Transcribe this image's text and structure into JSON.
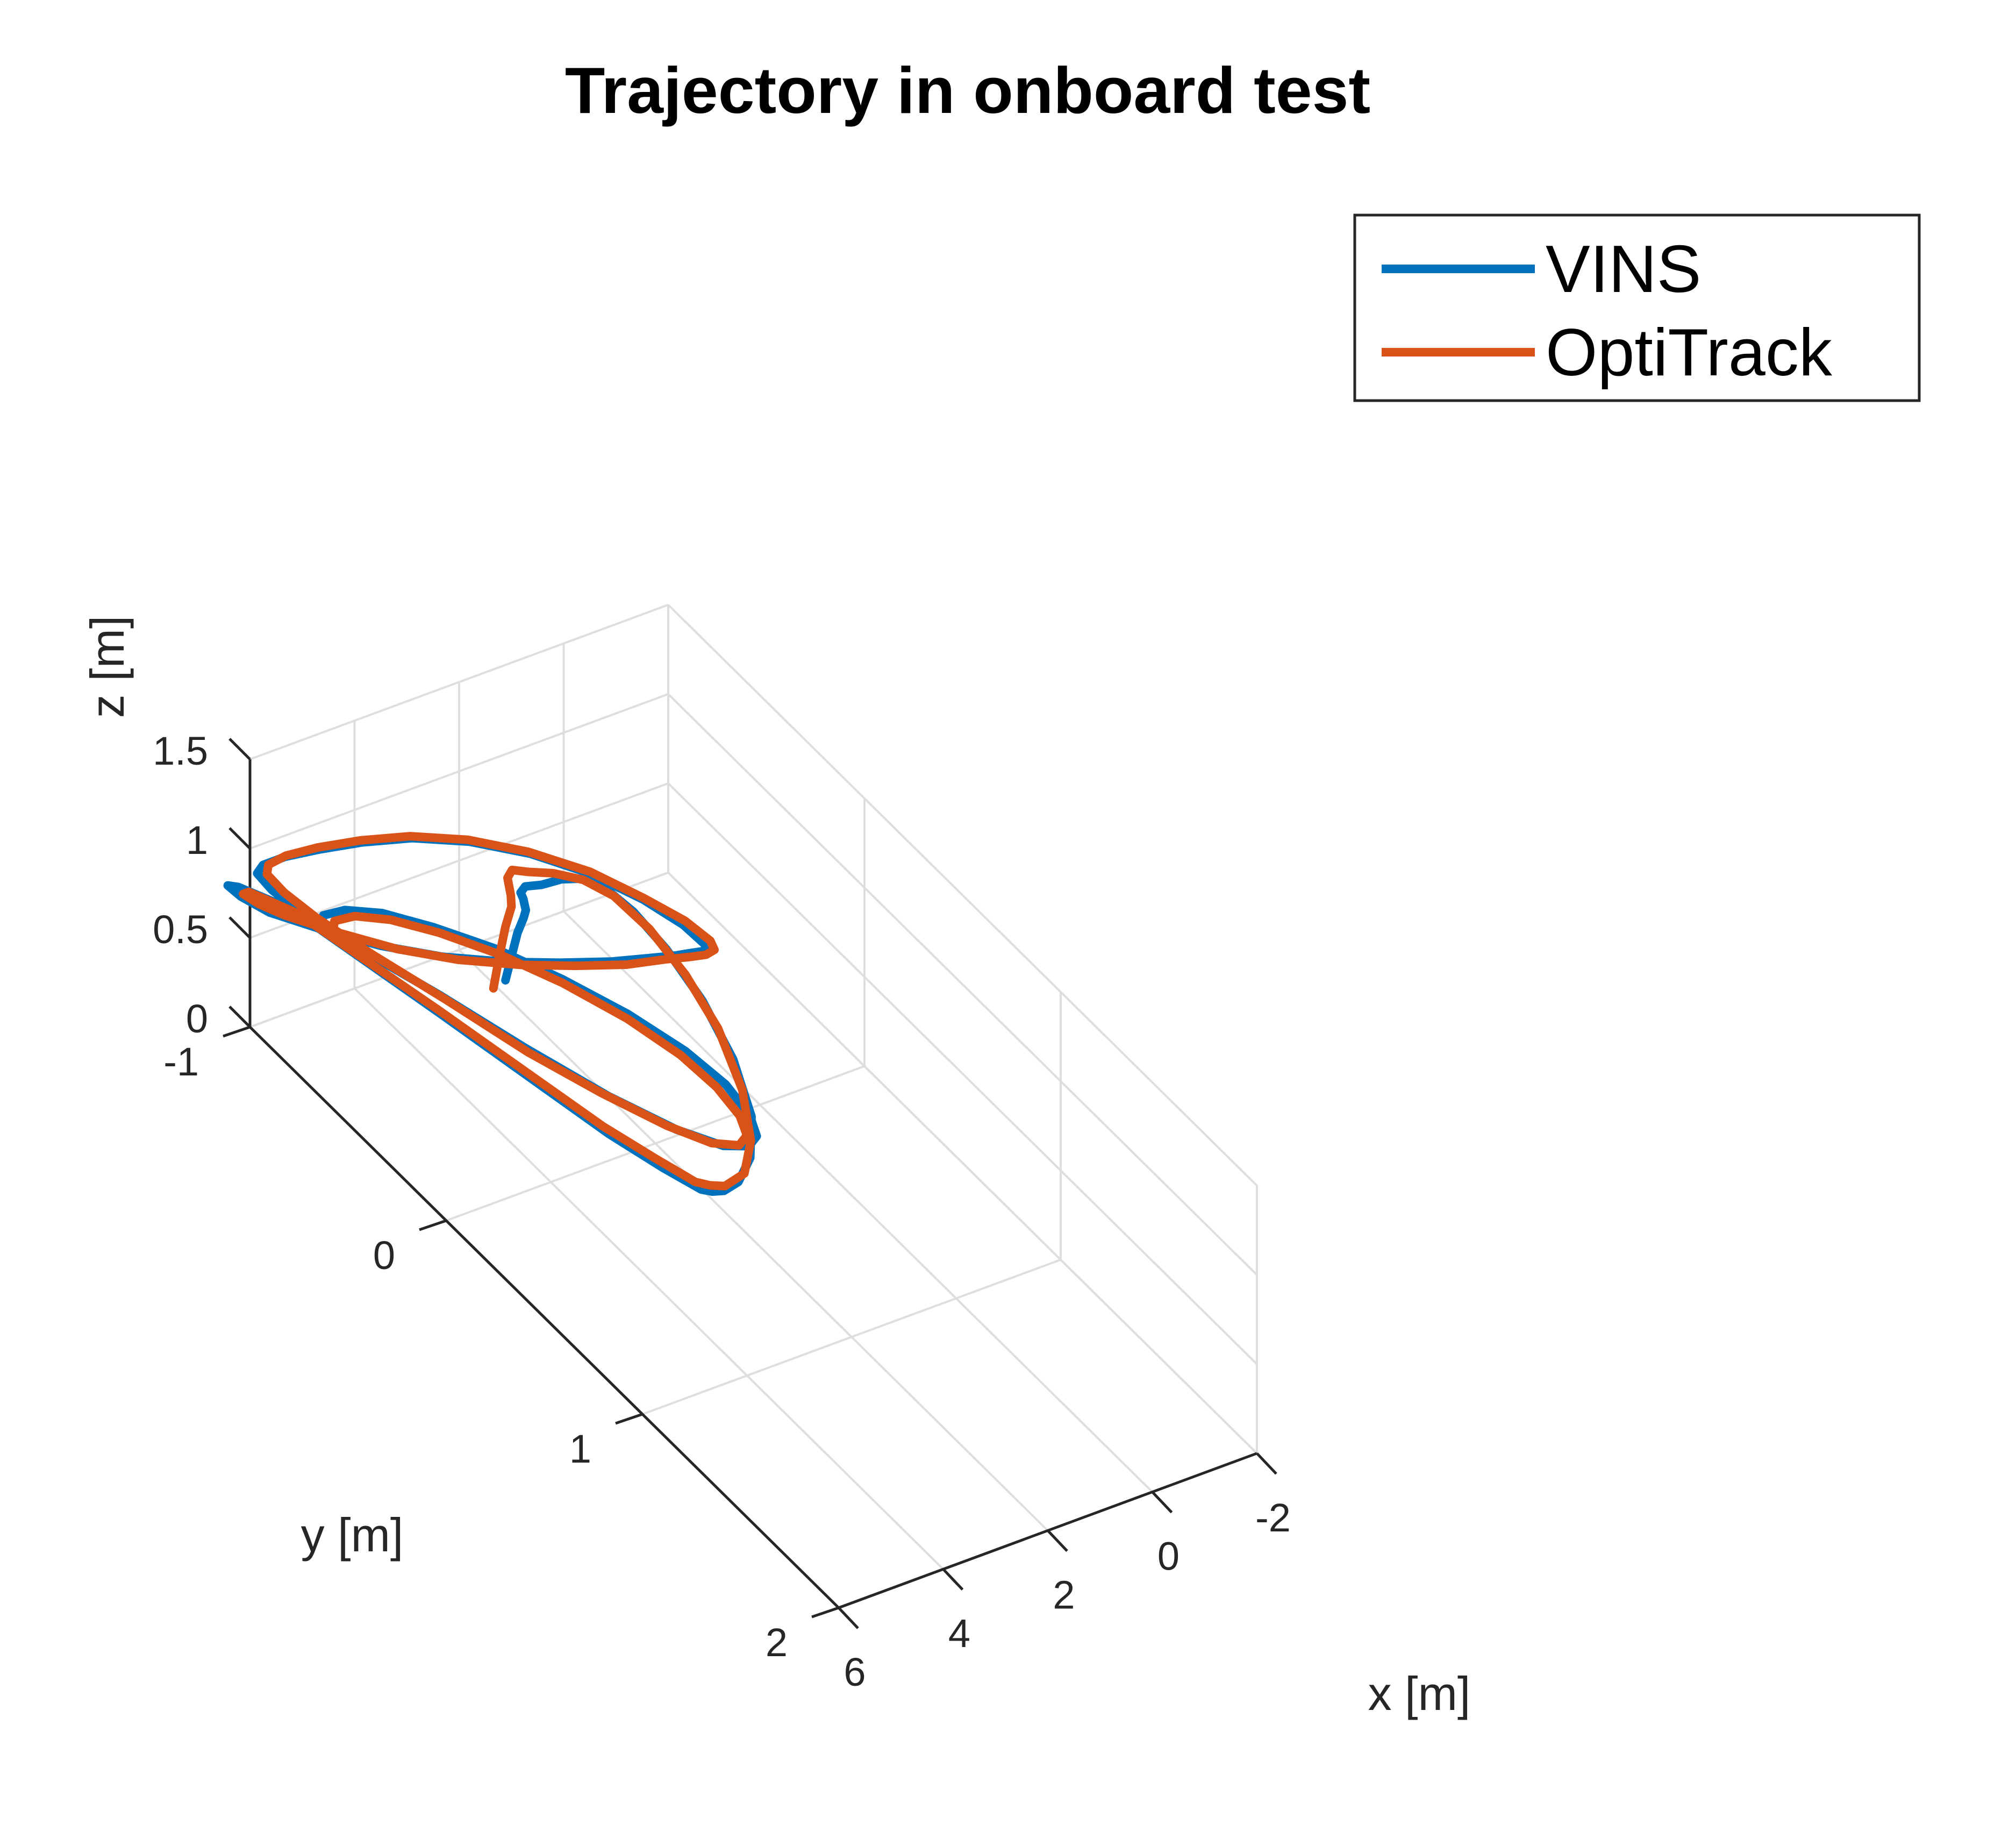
{
  "chart_data": {
    "type": "line",
    "title": "Trajectory in onboard test",
    "xlabel": "x [m]",
    "ylabel": "y [m]",
    "zlabel": "z [m]",
    "xlim": [
      -2,
      6
    ],
    "ylim": [
      -1,
      2
    ],
    "zlim": [
      0,
      1.5
    ],
    "x_ticks": [
      "-2",
      "0",
      "2",
      "4",
      "6"
    ],
    "y_ticks": [
      "-1",
      "0",
      "1",
      "2"
    ],
    "z_ticks": [
      "0",
      "0.5",
      "1",
      "1.5"
    ],
    "grid": true,
    "legend_position": "top-right",
    "series": [
      {
        "name": "VINS",
        "color": "#0072bd",
        "points": [
          [
            2.54,
            -0.62,
            0.3
          ],
          [
            2.5,
            -0.6,
            0.45
          ],
          [
            2.46,
            -0.58,
            0.6
          ],
          [
            2.42,
            -0.56,
            0.7
          ],
          [
            2.3,
            -0.58,
            0.71
          ],
          [
            2.2,
            -0.62,
            0.72
          ],
          [
            2.1,
            -0.66,
            0.7
          ],
          [
            1.9,
            -0.69,
            0.68
          ],
          [
            1.7,
            -0.66,
            0.7
          ],
          [
            1.55,
            -0.6,
            0.78
          ],
          [
            1.45,
            -0.52,
            0.86
          ],
          [
            1.44,
            -0.4,
            0.93
          ],
          [
            1.48,
            -0.25,
            0.97
          ],
          [
            1.6,
            -0.05,
            0.99
          ],
          [
            1.85,
            0.2,
            1.0
          ],
          [
            2.2,
            0.45,
            0.98
          ],
          [
            2.6,
            0.65,
            0.92
          ],
          [
            3.0,
            0.75,
            0.84
          ],
          [
            3.3,
            0.77,
            0.76
          ],
          [
            3.5,
            0.75,
            0.71
          ],
          [
            3.65,
            0.73,
            0.7
          ],
          [
            3.75,
            0.7,
            0.69
          ],
          [
            3.95,
            0.56,
            0.68
          ],
          [
            4.2,
            0.35,
            0.67
          ],
          [
            4.8,
            -0.35,
            0.65
          ],
          [
            5.4,
            -0.95,
            0.65
          ],
          [
            5.85,
            -1.1,
            0.66
          ],
          [
            6.05,
            -1.1,
            0.69
          ],
          [
            6.1,
            -1.02,
            0.72
          ],
          [
            6.0,
            -0.9,
            0.75
          ],
          [
            5.7,
            -0.72,
            0.82
          ],
          [
            5.3,
            -0.52,
            0.9
          ],
          [
            4.8,
            -0.34,
            0.98
          ],
          [
            4.2,
            -0.18,
            1.06
          ],
          [
            3.6,
            -0.06,
            1.12
          ],
          [
            3.0,
            0.04,
            1.17
          ],
          [
            2.5,
            0.1,
            1.2
          ],
          [
            2.15,
            0.14,
            1.22
          ],
          [
            1.9,
            0.16,
            1.23
          ],
          [
            1.7,
            0.17,
            1.23
          ],
          [
            1.6,
            0.15,
            1.23
          ],
          [
            1.65,
            0.05,
            1.24
          ],
          [
            1.85,
            -0.1,
            1.24
          ],
          [
            2.2,
            -0.28,
            1.23
          ],
          [
            2.7,
            -0.45,
            1.21
          ],
          [
            3.3,
            -0.6,
            1.18
          ],
          [
            3.95,
            -0.72,
            1.14
          ],
          [
            4.6,
            -0.8,
            1.1
          ],
          [
            5.2,
            -0.86,
            1.06
          ],
          [
            5.7,
            -0.9,
            1.03
          ],
          [
            6.05,
            -0.92,
            1.0
          ],
          [
            6.2,
            -0.91,
            0.98
          ],
          [
            6.18,
            -0.84,
            0.96
          ],
          [
            6.0,
            -0.72,
            0.93
          ],
          [
            5.6,
            -0.54,
            0.89
          ],
          [
            5.0,
            -0.3,
            0.83
          ],
          [
            4.4,
            -0.02,
            0.77
          ],
          [
            3.8,
            0.24,
            0.72
          ],
          [
            3.25,
            0.44,
            0.69
          ],
          [
            2.8,
            0.56,
            0.68
          ],
          [
            2.5,
            0.61,
            0.7
          ],
          [
            2.35,
            0.61,
            0.74
          ],
          [
            2.3,
            0.56,
            0.8
          ],
          [
            2.38,
            0.46,
            0.87
          ],
          [
            2.62,
            0.32,
            0.93
          ],
          [
            3.05,
            0.14,
            0.99
          ],
          [
            3.6,
            -0.05,
            1.04
          ],
          [
            4.2,
            -0.23,
            1.08
          ],
          [
            4.8,
            -0.38,
            1.1
          ],
          [
            5.35,
            -0.5,
            1.11
          ],
          [
            5.8,
            -0.57,
            1.1
          ],
          [
            6.1,
            -0.6,
            1.07
          ],
          [
            6.22,
            -0.58,
            1.03
          ]
        ]
      },
      {
        "name": "OptiTrack",
        "color": "#d95319",
        "points": [
          [
            2.62,
            -0.66,
            0.22
          ],
          [
            2.58,
            -0.64,
            0.42
          ],
          [
            2.54,
            -0.62,
            0.6
          ],
          [
            2.5,
            -0.6,
            0.73
          ],
          [
            2.4,
            -0.63,
            0.75
          ],
          [
            2.2,
            -0.7,
            0.75
          ],
          [
            2.0,
            -0.73,
            0.74
          ],
          [
            1.8,
            -0.7,
            0.74
          ],
          [
            1.62,
            -0.62,
            0.8
          ],
          [
            1.5,
            -0.5,
            0.88
          ],
          [
            1.48,
            -0.35,
            0.95
          ],
          [
            1.55,
            -0.15,
            0.99
          ],
          [
            1.72,
            0.08,
            1.0
          ],
          [
            2.0,
            0.32,
            0.99
          ],
          [
            2.4,
            0.55,
            0.94
          ],
          [
            2.8,
            0.7,
            0.86
          ],
          [
            3.15,
            0.76,
            0.78
          ],
          [
            3.45,
            0.74,
            0.72
          ],
          [
            3.62,
            0.71,
            0.71
          ],
          [
            3.75,
            0.67,
            0.7
          ],
          [
            3.95,
            0.52,
            0.69
          ],
          [
            4.2,
            0.32,
            0.68
          ],
          [
            4.8,
            -0.36,
            0.66
          ],
          [
            5.4,
            -0.92,
            0.66
          ],
          [
            5.8,
            -1.06,
            0.67
          ],
          [
            5.98,
            -1.04,
            0.7
          ],
          [
            5.98,
            -0.96,
            0.73
          ],
          [
            5.85,
            -0.86,
            0.76
          ],
          [
            5.55,
            -0.68,
            0.83
          ],
          [
            5.15,
            -0.48,
            0.91
          ],
          [
            4.65,
            -0.3,
            0.99
          ],
          [
            4.05,
            -0.14,
            1.07
          ],
          [
            3.45,
            -0.02,
            1.13
          ],
          [
            2.85,
            0.08,
            1.18
          ],
          [
            2.35,
            0.14,
            1.22
          ],
          [
            2.0,
            0.18,
            1.24
          ],
          [
            1.78,
            0.2,
            1.25
          ],
          [
            1.62,
            0.2,
            1.26
          ],
          [
            1.55,
            0.16,
            1.26
          ],
          [
            1.62,
            0.05,
            1.26
          ],
          [
            1.85,
            -0.1,
            1.25
          ],
          [
            2.2,
            -0.28,
            1.24
          ],
          [
            2.7,
            -0.46,
            1.21
          ],
          [
            3.3,
            -0.61,
            1.18
          ],
          [
            3.95,
            -0.73,
            1.14
          ],
          [
            4.6,
            -0.81,
            1.1
          ],
          [
            5.2,
            -0.87,
            1.06
          ],
          [
            5.65,
            -0.91,
            1.02
          ],
          [
            5.95,
            -0.92,
            0.99
          ],
          [
            6.05,
            -0.9,
            0.97
          ],
          [
            6.02,
            -0.82,
            0.95
          ],
          [
            5.85,
            -0.7,
            0.92
          ],
          [
            5.5,
            -0.52,
            0.88
          ],
          [
            4.95,
            -0.28,
            0.82
          ],
          [
            4.4,
            -0.01,
            0.76
          ],
          [
            3.85,
            0.22,
            0.72
          ],
          [
            3.35,
            0.42,
            0.7
          ],
          [
            2.95,
            0.54,
            0.69
          ],
          [
            2.65,
            0.6,
            0.71
          ],
          [
            2.5,
            0.6,
            0.75
          ],
          [
            2.45,
            0.55,
            0.8
          ],
          [
            2.52,
            0.45,
            0.86
          ],
          [
            2.72,
            0.32,
            0.92
          ],
          [
            3.1,
            0.15,
            0.98
          ],
          [
            3.62,
            -0.04,
            1.03
          ],
          [
            4.2,
            -0.21,
            1.07
          ],
          [
            4.78,
            -0.36,
            1.09
          ],
          [
            5.3,
            -0.47,
            1.1
          ],
          [
            5.72,
            -0.54,
            1.09
          ],
          [
            6.0,
            -0.57,
            1.06
          ],
          [
            6.1,
            -0.55,
            1.02
          ]
        ]
      }
    ]
  }
}
